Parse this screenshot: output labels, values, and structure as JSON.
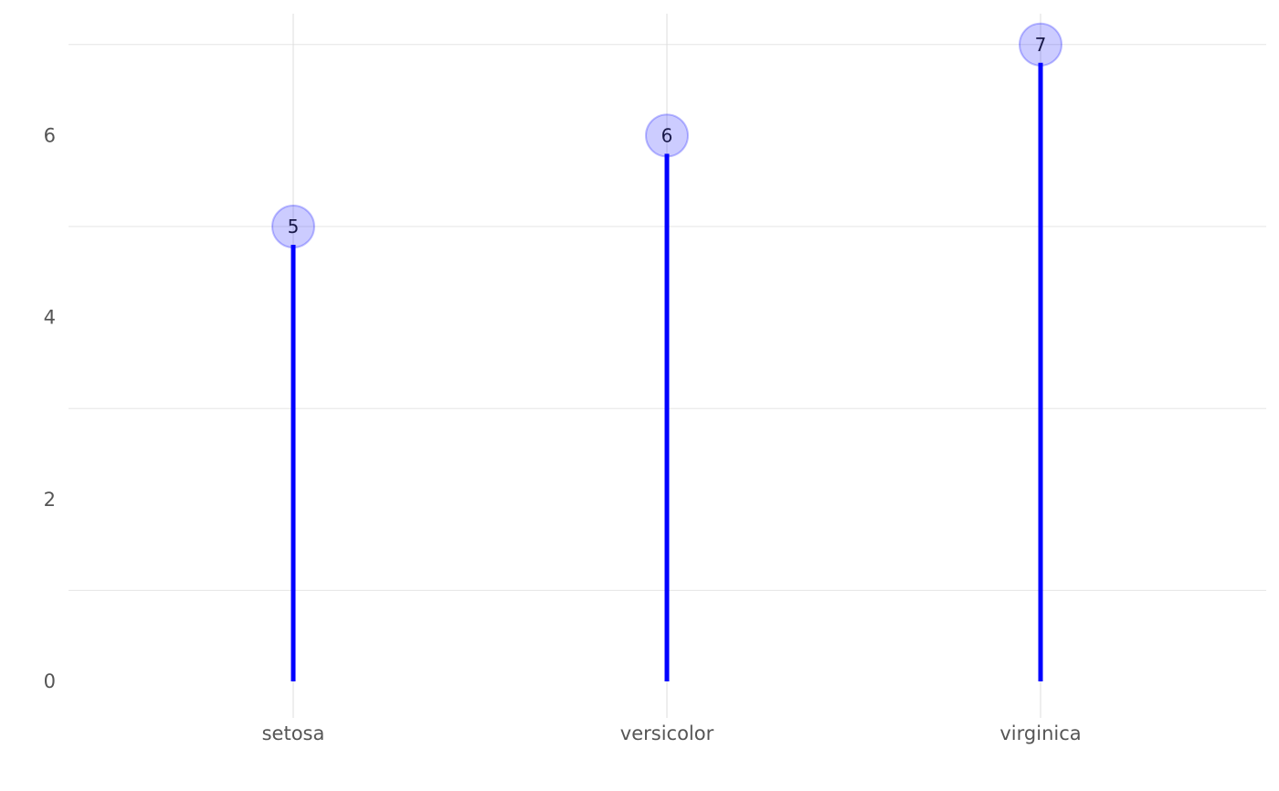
{
  "chart_data": {
    "type": "lollipop",
    "categories": [
      "setosa",
      "versicolor",
      "virginica"
    ],
    "values": [
      5,
      6,
      7
    ],
    "data_labels": [
      "5",
      "6",
      "7"
    ],
    "title": "",
    "xlabel": "",
    "ylabel": "",
    "ylim": [
      0,
      7
    ],
    "yticks": [
      0,
      2,
      4,
      6
    ],
    "ytick_labels": [
      "0",
      "2",
      "4",
      "6"
    ],
    "grid": true,
    "legend": "none",
    "colors": {
      "stem": "#0000ff",
      "marker_fill": "#0000ff",
      "marker_fill_opacity": 0.2,
      "marker_stroke": "#0000ff",
      "gridline": "#e5e5e5",
      "tick_text": "#555555"
    }
  }
}
